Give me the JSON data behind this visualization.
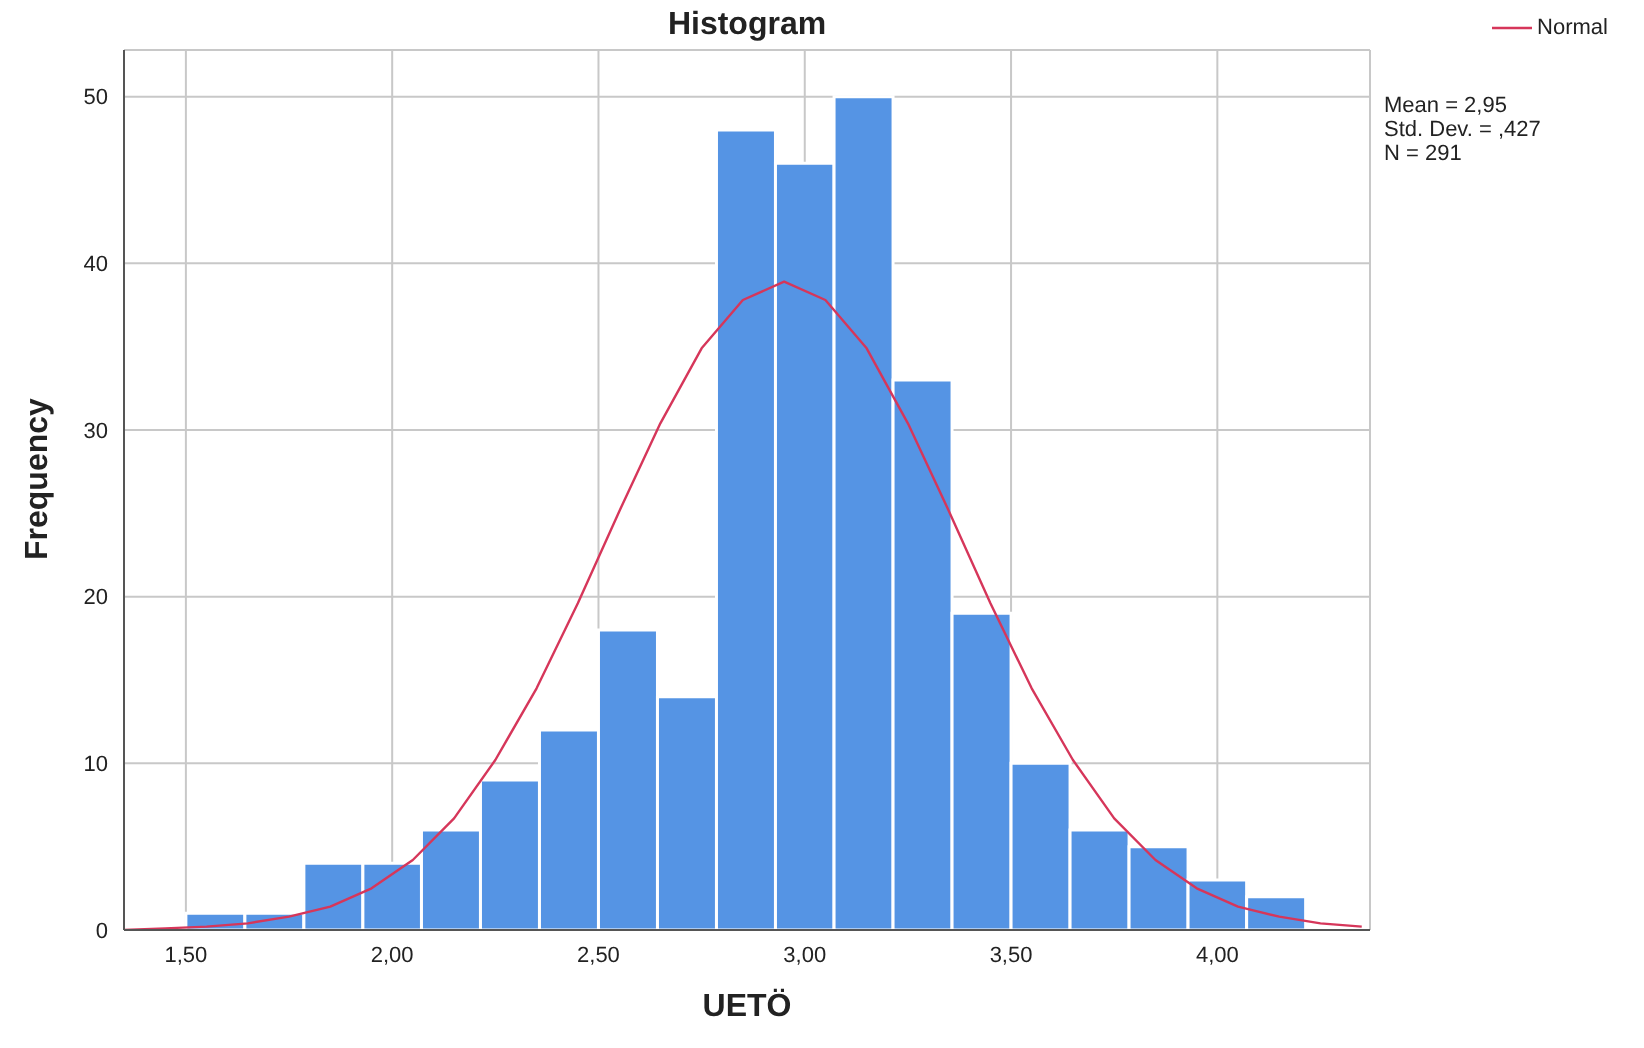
{
  "chart_data": {
    "type": "histogram",
    "title": "Histogram",
    "xlabel": "UETÖ",
    "ylabel": "Frequency",
    "bins": [
      1.5,
      1.643,
      1.786,
      1.929,
      2.071,
      2.214,
      2.357,
      2.5,
      2.643,
      2.786,
      2.929,
      3.071,
      3.214,
      3.357,
      3.5,
      3.643,
      3.786,
      3.929,
      4.071,
      4.214
    ],
    "values": [
      1,
      1,
      4,
      4,
      6,
      9,
      12,
      18,
      14,
      48,
      46,
      50,
      33,
      19,
      10,
      6,
      5,
      3,
      2
    ],
    "color": "#5594e4",
    "series": [
      {
        "type": "line",
        "name": "Normal",
        "color": "#d6365a",
        "x": [
          1.35,
          1.45,
          1.55,
          1.65,
          1.75,
          1.85,
          1.95,
          2.05,
          2.15,
          2.25,
          2.35,
          2.45,
          2.55,
          2.65,
          2.75,
          2.85,
          2.95,
          3.05,
          3.15,
          3.25,
          3.35,
          3.45,
          3.55,
          3.65,
          3.75,
          3.85,
          3.95,
          4.05,
          4.15,
          4.25,
          4.35
        ],
        "values": [
          0.0,
          0.1,
          0.2,
          0.4,
          0.8,
          1.4,
          2.5,
          4.2,
          6.7,
          10.2,
          14.5,
          19.6,
          25.1,
          30.4,
          34.9,
          37.8,
          38.9,
          37.8,
          34.9,
          30.4,
          25.1,
          19.6,
          14.5,
          10.2,
          6.7,
          4.2,
          2.5,
          1.4,
          0.8,
          0.4,
          0.2
        ]
      }
    ],
    "xlim": [
      1.35,
      4.37
    ],
    "xticks": [
      {
        "value": 1.5,
        "label": "1,50"
      },
      {
        "value": 2.0,
        "label": "2,00"
      },
      {
        "value": 2.5,
        "label": "2,50"
      },
      {
        "value": 3.0,
        "label": "3,00"
      },
      {
        "value": 3.5,
        "label": "3,50"
      },
      {
        "value": 4.0,
        "label": "4,00"
      }
    ],
    "ylim": [
      0,
      52.8
    ],
    "yticks": [
      0,
      10,
      20,
      30,
      40,
      50
    ],
    "grid": true,
    "legend": "top right",
    "marker": "none",
    "line_style": "solid",
    "annotations": [
      "Mean = 2,95",
      "Std. Dev. = ,427",
      "N = 291"
    ]
  }
}
